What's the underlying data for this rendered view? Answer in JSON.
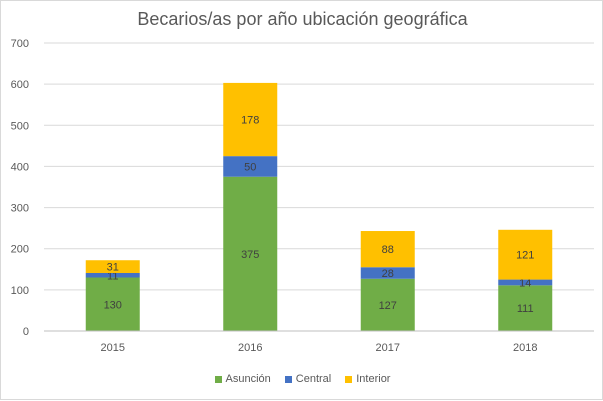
{
  "chart_data": {
    "type": "bar",
    "stacked": true,
    "title": "Becarios/as por año ubicación geográfica",
    "xlabel": "",
    "ylabel": "",
    "categories": [
      "2015",
      "2016",
      "2017",
      "2018"
    ],
    "ylim": [
      0,
      700
    ],
    "yticks": [
      0,
      100,
      200,
      300,
      400,
      500,
      600,
      700
    ],
    "grid": true,
    "legend_position": "bottom",
    "series": [
      {
        "name": "Asunción",
        "values": [
          130,
          375,
          127,
          111
        ],
        "color": "#70ad47"
      },
      {
        "name": "Central",
        "values": [
          11,
          50,
          28,
          14
        ],
        "color": "#4472c4"
      },
      {
        "name": "Interior",
        "values": [
          31,
          178,
          88,
          121
        ],
        "color": "#ffc000"
      }
    ]
  }
}
